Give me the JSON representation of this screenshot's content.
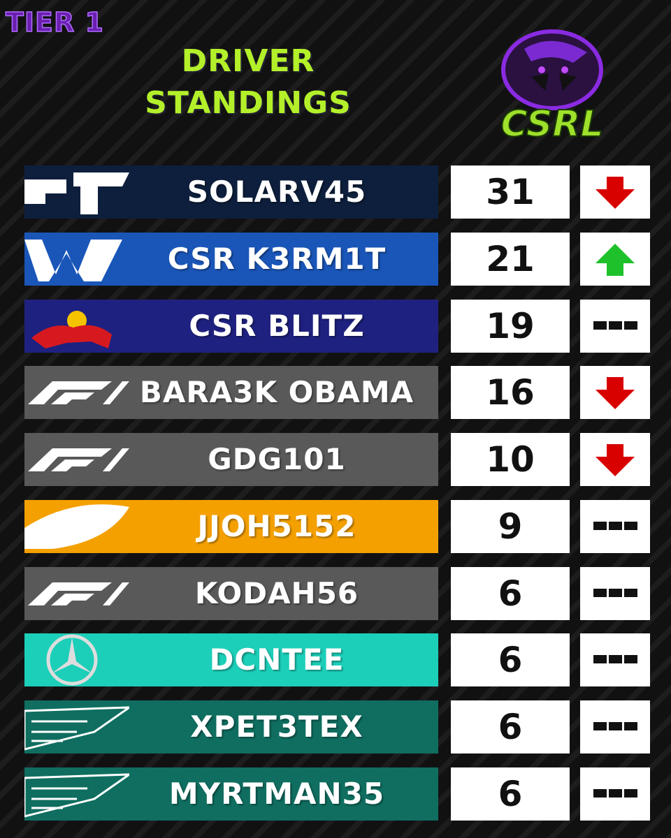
{
  "header": {
    "tier": "TIER 1",
    "title_line1": "DRIVER",
    "title_line2": "STANDINGS",
    "logo_text": "CSRL"
  },
  "standings": [
    {
      "driver": "SOLARV45",
      "points": 31
    },
    {
      "driver": "CSR K3RM1T",
      "points": 21
    },
    {
      "driver": "CSR BLITZ",
      "points": 19
    },
    {
      "driver": "BARA3K OBAMA",
      "points": 16
    },
    {
      "driver": "GDG101",
      "points": 10
    },
    {
      "driver": "JJOH5152",
      "points": 9
    },
    {
      "driver": "KODAH56",
      "points": 6
    },
    {
      "driver": "DCNTEE",
      "points": 6
    },
    {
      "driver": "XPET3TEX",
      "points": 6
    },
    {
      "driver": "MYRTMAN35",
      "points": 6
    }
  ]
}
